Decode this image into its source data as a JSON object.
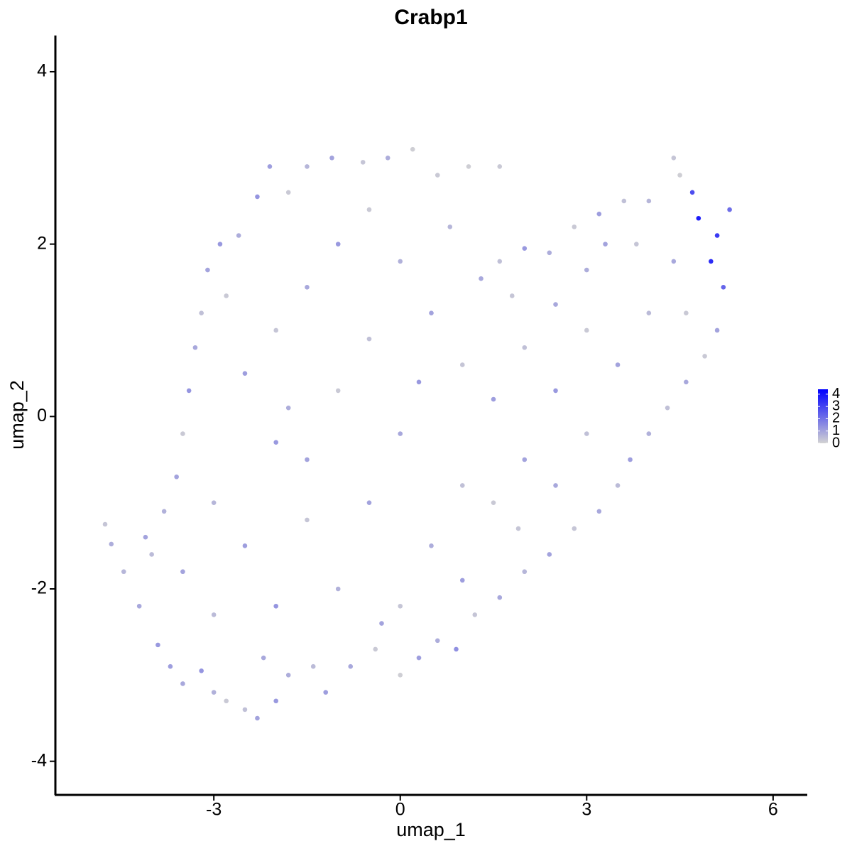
{
  "chart_data": {
    "type": "scatter",
    "title": "Crabp1",
    "x_label": "umap_1",
    "y_label": "umap_2",
    "xlim": [
      -5.55,
      6.55
    ],
    "ylim": [
      -4.39,
      4.42
    ],
    "xticks": [
      -3,
      0,
      3,
      6
    ],
    "yticks": [
      -4,
      -2,
      0,
      2,
      4
    ],
    "grid": false,
    "colorbar": {
      "lim": [
        0,
        4.4
      ],
      "ticks": [
        0,
        1,
        2,
        3,
        4
      ],
      "low_color": "#d3d3d3",
      "high_color": "#0000ff"
    },
    "x": [
      -4.75,
      -4.65,
      -4.45,
      -4.2,
      -4.1,
      -3.9,
      -3.7,
      -3.5,
      -3.2,
      -3.0,
      -2.8,
      -2.5,
      -2.3,
      -2.0,
      -1.8,
      -1.4,
      -1.2,
      -0.8,
      -0.4,
      0.0,
      0.3,
      0.6,
      0.9,
      1.2,
      1.6,
      2.0,
      2.4,
      2.8,
      3.2,
      3.5,
      3.7,
      4.0,
      4.3,
      4.6,
      4.9,
      5.1,
      5.2,
      5.0,
      5.1,
      5.3,
      4.8,
      4.7,
      4.5,
      4.4,
      4.0,
      3.6,
      3.2,
      2.8,
      2.4,
      2.0,
      1.6,
      1.3,
      1.6,
      1.1,
      0.6,
      0.2,
      -0.2,
      -0.6,
      -1.1,
      -1.5,
      -1.8,
      -2.1,
      -2.3,
      -2.6,
      -2.9,
      -3.1,
      -3.2,
      -3.3,
      -3.4,
      -3.5,
      -3.6,
      -3.8,
      -4.0,
      -2.5,
      -2.0,
      -1.5,
      -1.0,
      -0.5,
      0.0,
      0.5,
      1.0,
      1.5,
      2.0,
      2.5,
      3.0,
      3.5,
      4.0,
      4.4,
      3.8,
      3.0,
      2.0,
      1.0,
      0.0,
      -1.0,
      -2.0,
      -3.0,
      -2.5,
      -1.5,
      -0.5,
      0.5,
      1.5,
      2.5,
      3.0,
      2.5,
      -1.0,
      -2.0,
      -3.0,
      -3.5,
      0.0,
      1.0,
      -0.5,
      -1.5,
      0.8,
      -2.8,
      -1.8,
      0.3,
      1.8,
      3.3,
      4.6,
      -2.2,
      -0.3,
      1.9
    ],
    "y": [
      -1.25,
      -1.48,
      -1.8,
      -2.2,
      -1.4,
      -2.65,
      -2.9,
      -3.1,
      -2.95,
      -3.2,
      -3.3,
      -3.4,
      -3.5,
      -3.3,
      -3.0,
      -2.9,
      -3.2,
      -2.9,
      -2.7,
      -3.0,
      -2.8,
      -2.6,
      -2.7,
      -2.3,
      -2.1,
      -1.8,
      -1.6,
      -1.3,
      -1.1,
      -0.8,
      -0.5,
      -0.2,
      0.1,
      0.4,
      0.7,
      1.0,
      1.5,
      1.8,
      2.1,
      2.4,
      2.3,
      2.6,
      2.8,
      3.0,
      2.5,
      2.5,
      2.35,
      2.2,
      1.9,
      1.95,
      1.8,
      1.6,
      2.9,
      2.9,
      2.8,
      3.1,
      3.0,
      2.95,
      3.0,
      2.9,
      2.6,
      2.9,
      2.55,
      2.1,
      2.0,
      1.7,
      1.2,
      0.8,
      0.3,
      -0.2,
      -0.7,
      -1.1,
      -1.6,
      0.5,
      1.0,
      1.5,
      2.0,
      2.4,
      1.8,
      1.2,
      0.6,
      0.2,
      0.8,
      1.3,
      1.0,
      0.6,
      1.2,
      1.8,
      2.0,
      1.7,
      -0.5,
      -0.8,
      -0.2,
      0.3,
      -0.3,
      -1.0,
      -1.5,
      -1.2,
      -1.0,
      -1.5,
      -1.0,
      -0.8,
      -0.2,
      0.3,
      -2.0,
      -2.2,
      -2.3,
      -1.8,
      -2.2,
      -1.9,
      0.9,
      -0.5,
      2.2,
      1.4,
      0.1,
      0.4,
      1.4,
      2.0,
      1.2,
      -2.8,
      -2.4,
      -1.3
    ],
    "values": [
      0.3,
      0.8,
      0.6,
      0.9,
      1,
      1.2,
      1.1,
      0.9,
      1.3,
      0.7,
      0.2,
      0.4,
      1,
      1.2,
      0.8,
      0.5,
      1.1,
      0.9,
      0.2,
      0.1,
      1.1,
      0.8,
      1.4,
      0.3,
      0.9,
      0.6,
      1,
      0.3,
      0.9,
      0.5,
      1.1,
      0.7,
      0.4,
      0.9,
      0.2,
      1,
      2.3,
      3.5,
      3.2,
      2.1,
      3.8,
      2.8,
      0.1,
      0.3,
      0.6,
      0.4,
      1.1,
      0.2,
      0.8,
      1.2,
      0.4,
      0.9,
      0.2,
      0.1,
      0.2,
      0.1,
      0.8,
      0.3,
      1,
      0.6,
      0.2,
      1.1,
      1.3,
      0.8,
      1.2,
      1,
      0.4,
      0.9,
      1.3,
      0.2,
      1,
      0.7,
      0.5,
      1.1,
      0.3,
      0.9,
      1.2,
      0.2,
      0.7,
      1.0,
      0.3,
      1.1,
      0.4,
      0.9,
      0.2,
      1.0,
      0.5,
      0.9,
      0.3,
      0.8,
      1,
      0.4,
      0.9,
      0.2,
      1.2,
      0.6,
      1.1,
      0.3,
      1,
      0.8,
      0.2,
      0.9,
      0.4,
      1.2,
      0.7,
      1.3,
      0.5,
      1,
      0.3,
      1.1,
      0.4,
      1,
      0.6,
      0.2,
      0.8,
      1.2,
      0.3,
      1.0,
      0.2,
      0.9,
      1,
      0.3
    ]
  }
}
